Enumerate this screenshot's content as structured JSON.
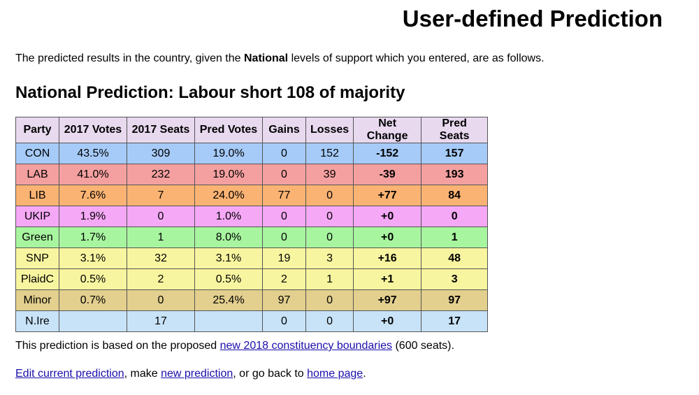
{
  "page": {
    "title": "User-defined Prediction",
    "intro_before": "The predicted results in the country, given the ",
    "intro_bold": "National",
    "intro_after": " levels of support which you entered, are as follows.",
    "subtitle": "National Prediction: Labour short 108 of majority"
  },
  "table": {
    "headers": [
      "Party",
      "2017 Votes",
      "2017 Seats",
      "Pred Votes",
      "Gains",
      "Losses",
      "Net Change",
      "Pred Seats"
    ],
    "rows": [
      {
        "party": "CON",
        "votes2017": "43.5%",
        "seats2017": "309",
        "predVotes": "19.0%",
        "gains": "0",
        "losses": "152",
        "net": "-152",
        "predSeats": "157",
        "color": "#a6cbf8"
      },
      {
        "party": "LAB",
        "votes2017": "41.0%",
        "seats2017": "232",
        "predVotes": "19.0%",
        "gains": "0",
        "losses": "39",
        "net": "-39",
        "predSeats": "193",
        "color": "#f5a0a0"
      },
      {
        "party": "LIB",
        "votes2017": "7.6%",
        "seats2017": "7",
        "predVotes": "24.0%",
        "gains": "77",
        "losses": "0",
        "net": "+77",
        "predSeats": "84",
        "color": "#fbb373"
      },
      {
        "party": "UKIP",
        "votes2017": "1.9%",
        "seats2017": "0",
        "predVotes": "1.0%",
        "gains": "0",
        "losses": "0",
        "net": "+0",
        "predSeats": "0",
        "color": "#f5a8f5"
      },
      {
        "party": "Green",
        "votes2017": "1.7%",
        "seats2017": "1",
        "predVotes": "8.0%",
        "gains": "0",
        "losses": "0",
        "net": "+0",
        "predSeats": "1",
        "color": "#a8f5a0"
      },
      {
        "party": "SNP",
        "votes2017": "3.1%",
        "seats2017": "32",
        "predVotes": "3.1%",
        "gains": "19",
        "losses": "3",
        "net": "+16",
        "predSeats": "48",
        "color": "#f8f5a0"
      },
      {
        "party": "PlaidC",
        "votes2017": "0.5%",
        "seats2017": "2",
        "predVotes": "0.5%",
        "gains": "2",
        "losses": "1",
        "net": "+1",
        "predSeats": "3",
        "color": "#f8f5a0"
      },
      {
        "party": "Minor",
        "votes2017": "0.7%",
        "seats2017": "0",
        "predVotes": "25.4%",
        "gains": "97",
        "losses": "0",
        "net": "+97",
        "predSeats": "97",
        "color": "#e3cf8e"
      },
      {
        "party": "N.Ire",
        "votes2017": "",
        "seats2017": "17",
        "predVotes": "",
        "gains": "0",
        "losses": "0",
        "net": "+0",
        "predSeats": "17",
        "color": "#c8e3f8"
      }
    ]
  },
  "footer": {
    "note_before": "This prediction is based on the proposed ",
    "note_link": "new 2018 constituency boundaries",
    "note_after": " (600 seats).",
    "nav_link1": "Edit current prediction",
    "nav_text1": ", make ",
    "nav_link2": "new prediction",
    "nav_text2": ", or go back to ",
    "nav_link3": "home page",
    "nav_text3": "."
  },
  "colors": {
    "header": "#e8d9ef",
    "link": "#1a0dab"
  }
}
